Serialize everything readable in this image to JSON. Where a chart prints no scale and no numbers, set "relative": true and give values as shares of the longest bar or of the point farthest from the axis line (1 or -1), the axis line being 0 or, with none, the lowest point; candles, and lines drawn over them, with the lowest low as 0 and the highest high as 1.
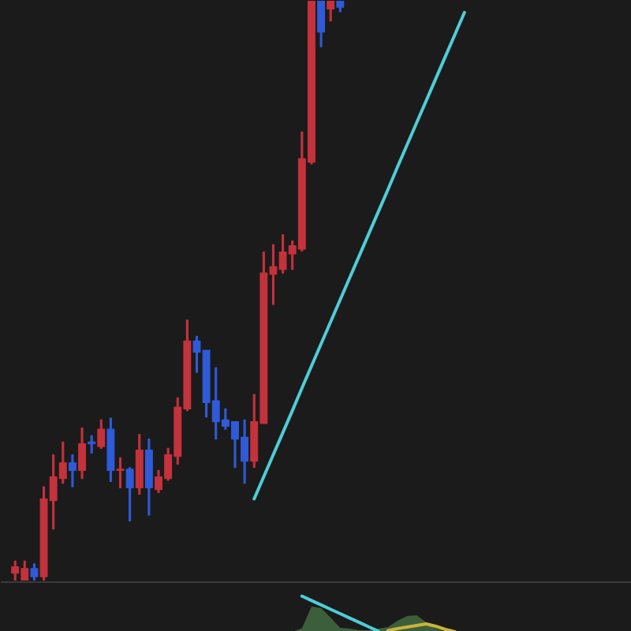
{
  "chart_data": [
    {
      "type": "candlestick",
      "relative": true,
      "tick_labels": false,
      "grid": false,
      "categories": [
        null,
        null,
        null,
        null,
        null,
        null,
        null,
        null,
        null,
        null,
        null,
        null,
        null,
        null,
        null,
        null,
        null,
        null,
        null,
        null,
        null,
        null,
        null,
        null,
        null,
        null,
        null,
        null,
        null,
        null,
        null,
        null,
        null,
        null,
        null,
        null,
        null,
        null,
        null,
        null,
        null,
        null,
        null,
        null,
        null,
        null,
        null,
        null,
        null,
        null,
        null,
        null,
        null,
        null,
        null,
        null,
        null,
        null,
        null,
        null,
        null,
        null,
        null,
        null,
        null,
        null
      ],
      "ohlc": [
        null,
        [
          0.014,
          0.035,
          0,
          0.025
        ],
        [
          0,
          0.035,
          0,
          0.022
        ],
        [
          0.022,
          0.03,
          0,
          0.008
        ],
        [
          0.008,
          0.163,
          0,
          0.142
        ],
        [
          0.139,
          0.218,
          0.09,
          0.18
        ],
        [
          0.177,
          0.24,
          0.169,
          0.204
        ],
        [
          0.204,
          0.218,
          0.163,
          0.191
        ],
        [
          0.191,
          0.264,
          0.177,
          0.237
        ],
        [
          0.24,
          0.251,
          0.221,
          0.237
        ],
        [
          0.232,
          0.278,
          0.229,
          0.262
        ],
        [
          0.262,
          0.281,
          0.172,
          0.191
        ],
        [
          0.191,
          0.213,
          0.161,
          0.193
        ],
        [
          0.193,
          0.196,
          0.104,
          0.161
        ],
        [
          0.161,
          0.253,
          0.15,
          0.226
        ],
        [
          0.226,
          0.245,
          0.114,
          0.161
        ],
        [
          0.158,
          0.191,
          0.153,
          0.18
        ],
        [
          0.177,
          0.229,
          0.174,
          0.218
        ],
        [
          0.215,
          0.316,
          0.202,
          0.3
        ],
        [
          0.297,
          0.45,
          0.294,
          0.414
        ],
        [
          0.414,
          0.422,
          0.36,
          0.395
        ],
        [
          0.398,
          0.398,
          0.283,
          0.308
        ],
        [
          0.311,
          0.368,
          0.245,
          0.275
        ],
        [
          0.278,
          0.297,
          0.262,
          0.267
        ],
        [
          0.275,
          0.275,
          0.196,
          0.245
        ],
        [
          0.248,
          0.278,
          0.169,
          0.207
        ],
        [
          0.207,
          0.322,
          0.196,
          0.275
        ],
        [
          0.272,
          0.567,
          0.272,
          0.531
        ],
        [
          0.529,
          0.58,
          0.477,
          0.542
        ],
        [
          0.537,
          0.597,
          0.531,
          0.567
        ],
        [
          0.564,
          0.586,
          0.537,
          0.578
        ],
        [
          0.572,
          0.774,
          0.569,
          0.728
        ],
        [
          0.722,
          1,
          0.719,
          1
        ],
        [
          1,
          1,
          0.921,
          0.946
        ],
        [
          0.986,
          1,
          0.965,
          1
        ],
        [
          1,
          1,
          0.981,
          0.989
        ],
        null,
        null,
        null,
        null,
        null,
        null,
        null,
        null,
        null,
        null,
        null,
        null,
        null,
        null,
        null,
        null,
        null,
        null,
        null,
        null,
        null,
        null,
        null,
        null,
        null,
        null,
        null,
        null,
        null,
        null
      ],
      "colors": [
        null,
        "#c4323c",
        "#c4323c",
        "#2f5bd8",
        "#c4323c",
        "#c4323c",
        "#c4323c",
        "#2f5bd8",
        "#c4323c",
        "#2f5bd8",
        "#c4323c",
        "#2f5bd8",
        "#c4323c",
        "#2f5bd8",
        "#c4323c",
        "#2f5bd8",
        "#c4323c",
        "#c4323c",
        "#c4323c",
        "#c4323c",
        "#2f5bd8",
        "#2f5bd8",
        "#2f5bd8",
        "#2f5bd8",
        "#2f5bd8",
        "#2f5bd8",
        "#c4323c",
        "#c4323c",
        "#c4323c",
        "#c4323c",
        "#c4323c",
        "#c4323c",
        "#c4323c",
        "#2f5bd8",
        "#c4323c",
        "#2f5bd8",
        null,
        null,
        null,
        null,
        null,
        null,
        null,
        null,
        null,
        null,
        null,
        null,
        null,
        null,
        null,
        null,
        null,
        null,
        null,
        null,
        null,
        null,
        null,
        null,
        null,
        null,
        null,
        null,
        null,
        null
      ],
      "series": [
        {
          "type": "line",
          "color": "#4ecdd6",
          "values": [
            null,
            null,
            null,
            null,
            null,
            null,
            null,
            null,
            null,
            null,
            null,
            null,
            null,
            null,
            null,
            null,
            null,
            null,
            null,
            null,
            null,
            null,
            null,
            null,
            null,
            null,
            0.142,
            0.18,
            0.218,
            0.256,
            0.294,
            0.333,
            0.371,
            0.409,
            0.447,
            0.485,
            0.523,
            0.561,
            0.599,
            0.637,
            0.675,
            0.714,
            0.752,
            0.79,
            0.828,
            0.866,
            0.904,
            0.942,
            0.98,
            null,
            null,
            null,
            null,
            null,
            null,
            null,
            null,
            null,
            null,
            null,
            null,
            null,
            null,
            null,
            null,
            null
          ]
        }
      ]
    },
    {
      "type": "area",
      "relative": true,
      "tick_labels": false,
      "grid": false,
      "categories": [
        null,
        null,
        null,
        null,
        null,
        null,
        null,
        null,
        null,
        null,
        null,
        null,
        null,
        null,
        null,
        null,
        null,
        null,
        null,
        null,
        null,
        null,
        null,
        null,
        null,
        null,
        null,
        null,
        null,
        null,
        null,
        null,
        null,
        null,
        null,
        null,
        null,
        null,
        null,
        null,
        null,
        null,
        null,
        null,
        null,
        null,
        null,
        null,
        null,
        null,
        null,
        null,
        null,
        null,
        null,
        null,
        null,
        null,
        null,
        null,
        null,
        null,
        null,
        null,
        null,
        null
      ],
      "series": [
        {
          "type": "area",
          "color": "#3d5e3a",
          "values": [
            null,
            null,
            null,
            null,
            null,
            null,
            null,
            null,
            null,
            null,
            null,
            null,
            null,
            null,
            null,
            null,
            null,
            null,
            null,
            null,
            null,
            null,
            null,
            null,
            null,
            null,
            null,
            null,
            null,
            null,
            0,
            0.102,
            0.708,
            0.663,
            0.398,
            0.111,
            0.089,
            0.044,
            0.044,
            0.089,
            0.132,
            0.309,
            0.443,
            0.465,
            0.265,
            0.089,
            0,
            null,
            null,
            null,
            null,
            null,
            null,
            null,
            null,
            null,
            null,
            null,
            null,
            null,
            null,
            null,
            null,
            null,
            null,
            null
          ]
        },
        {
          "type": "line",
          "color": "#4ecdd6",
          "values": [
            null,
            null,
            null,
            null,
            null,
            null,
            null,
            null,
            null,
            null,
            null,
            null,
            null,
            null,
            null,
            null,
            null,
            null,
            null,
            null,
            null,
            null,
            null,
            null,
            null,
            null,
            null,
            null,
            null,
            null,
            null,
            1,
            0.877,
            0.754,
            0.631,
            0.508,
            0.385,
            0.261,
            0.138,
            0.015,
            null,
            null,
            null,
            null,
            null,
            null,
            null,
            null,
            null,
            null,
            null,
            null,
            null,
            null,
            null,
            null,
            null,
            null,
            null,
            null,
            null,
            null,
            null,
            null,
            null,
            null
          ]
        },
        {
          "type": "line",
          "color": "#c9b43a",
          "values": [
            null,
            null,
            null,
            null,
            null,
            null,
            null,
            null,
            null,
            null,
            null,
            null,
            null,
            null,
            null,
            null,
            null,
            null,
            null,
            null,
            null,
            null,
            null,
            null,
            null,
            null,
            null,
            null,
            null,
            null,
            null,
            null,
            null,
            null,
            null,
            null,
            null,
            null,
            null,
            null,
            0.036,
            0.089,
            0.133,
            0.177,
            0.221,
            0.155,
            0.066,
            0,
            null,
            null,
            null,
            null,
            null,
            null,
            null,
            null,
            null,
            null,
            null,
            null,
            null,
            null,
            null,
            null,
            null,
            null
          ]
        }
      ]
    }
  ]
}
